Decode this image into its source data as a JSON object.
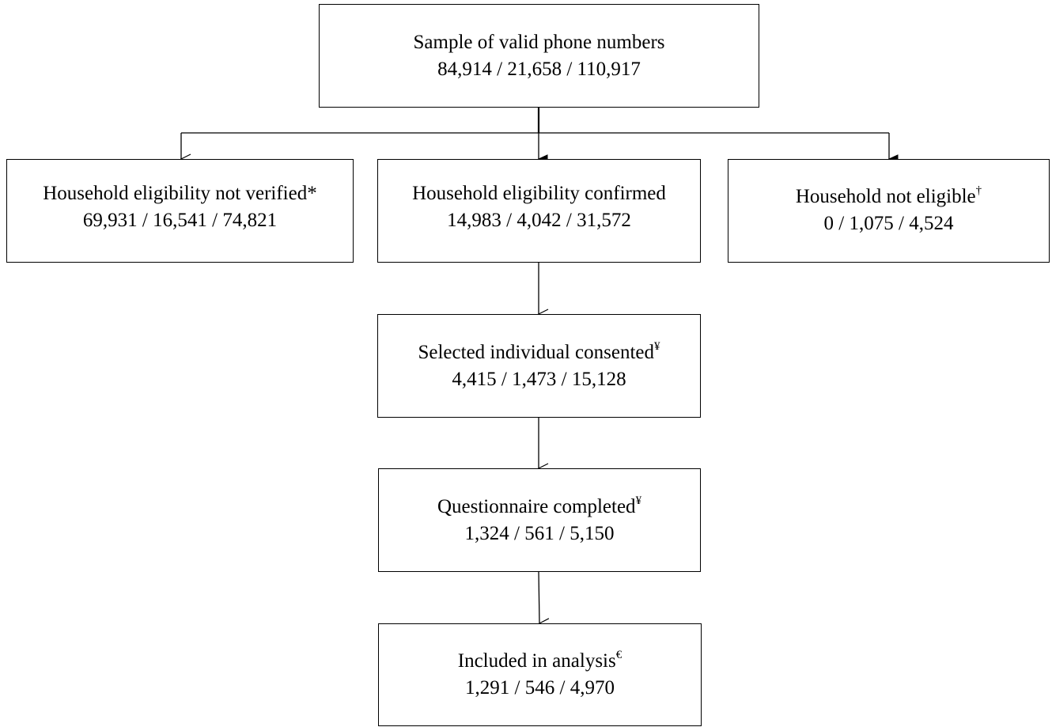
{
  "nodes": {
    "sample": {
      "label": "Sample of valid phone numbers",
      "sup": "",
      "counts": "84,914  / 21,658 / 110,917"
    },
    "not_verified": {
      "label": "Household eligibility not verified*",
      "sup": "",
      "counts": "69,931 / 16,541 / 74,821"
    },
    "confirmed": {
      "label": "Household eligibility confirmed",
      "sup": "",
      "counts": "14,983 / 4,042 / 31,572"
    },
    "not_eligible": {
      "label": "Household not eligible",
      "sup": "†",
      "counts": "0 / 1,075 / 4,524"
    },
    "consented": {
      "label": "Selected individual consented",
      "sup": "¥",
      "counts": "4,415 / 1,473 / 15,128"
    },
    "completed": {
      "label": "Questionnaire completed",
      "sup": "¥",
      "counts": "1,324 / 561 / 5,150"
    },
    "included": {
      "label": "Included in analysis",
      "sup": "€",
      "counts": "1,291 / 546 / 4,970"
    }
  }
}
